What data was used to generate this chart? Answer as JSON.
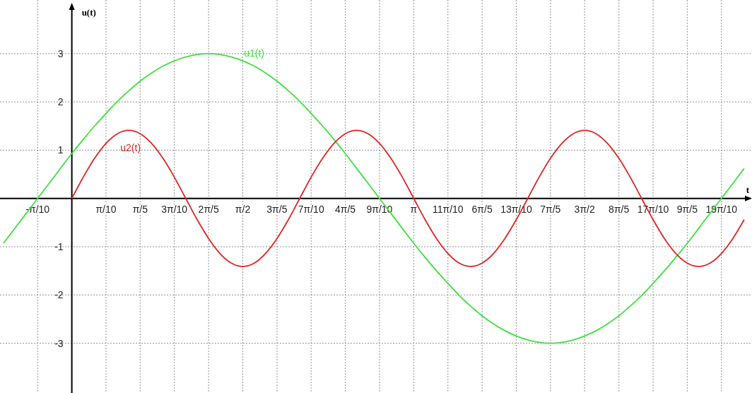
{
  "chart_data": {
    "type": "line",
    "xlabel": "t",
    "ylabel": "u(t)",
    "x": [
      -0.628,
      -0.524,
      -0.419,
      -0.314,
      -0.209,
      -0.105,
      0,
      0.105,
      0.209,
      0.314,
      0.419,
      0.524,
      0.628,
      0.733,
      0.838,
      0.942,
      1.047,
      1.152,
      1.257,
      1.361,
      1.466,
      1.571,
      1.676,
      1.78,
      1.885,
      1.99,
      2.094,
      2.199,
      2.304,
      2.409,
      2.513,
      2.618,
      2.723,
      2.827,
      2.932,
      3.037,
      3.142,
      3.246,
      3.351,
      3.456,
      3.56,
      3.665,
      3.77,
      3.875,
      3.979,
      4.084,
      4.189,
      4.294,
      4.398,
      4.503,
      4.608,
      4.712,
      4.817,
      4.922,
      5.027,
      5.131,
      5.236,
      5.341,
      5.445,
      5.55,
      5.655,
      5.76,
      5.864,
      5.969,
      6.074,
      6.178
    ],
    "series": [
      {
        "name": "u1(t)",
        "color": "#3ee03e",
        "values": [
          -0.93,
          -0.62,
          -0.31,
          0,
          0.31,
          0.62,
          0.93,
          1.22,
          1.5,
          1.76,
          2.01,
          2.23,
          2.43,
          2.6,
          2.74,
          2.85,
          2.93,
          2.98,
          3,
          2.98,
          2.93,
          2.85,
          2.74,
          2.6,
          2.43,
          2.23,
          2.01,
          1.76,
          1.5,
          1.22,
          0.93,
          0.62,
          0.31,
          0,
          -0.31,
          -0.62,
          -0.93,
          -1.22,
          -1.5,
          -1.76,
          -2.01,
          -2.23,
          -2.43,
          -2.6,
          -2.74,
          -2.85,
          -2.93,
          -2.98,
          -3,
          -2.98,
          -2.93,
          -2.85,
          -2.74,
          -2.6,
          -2.43,
          -2.23,
          -2.01,
          -1.76,
          -1.5,
          -1.22,
          -0.93,
          -0.62,
          -0.31,
          0,
          0.31,
          0.62
        ]
      },
      {
        "name": "u2(t)",
        "color": "#e02424",
        "values": [
          null,
          null,
          null,
          null,
          null,
          null,
          0,
          0.44,
          0.83,
          1.14,
          1.34,
          1.41,
          1.34,
          1.14,
          0.83,
          0.44,
          0,
          -0.44,
          -0.83,
          -1.14,
          -1.34,
          -1.41,
          -1.34,
          -1.14,
          -0.83,
          -0.44,
          0,
          0.44,
          0.83,
          1.14,
          1.34,
          1.41,
          1.34,
          1.14,
          0.83,
          0.44,
          0,
          -0.44,
          -0.83,
          -1.14,
          -1.34,
          -1.41,
          -1.34,
          -1.14,
          -0.83,
          -0.44,
          0,
          0.44,
          0.83,
          1.14,
          1.34,
          1.41,
          1.34,
          1.14,
          0.83,
          0.44,
          0,
          -0.44,
          -0.83,
          -1.14,
          -1.34,
          -1.41,
          -1.34,
          -1.14,
          -0.83,
          -0.44
        ]
      }
    ],
    "xlim": [
      -0.66,
      6.25
    ],
    "ylim": [
      -4.03,
      4.11
    ],
    "xticks": [
      {
        "value": -0.314,
        "label": "-π/10"
      },
      {
        "value": 0.314,
        "label": "π/10"
      },
      {
        "value": 0.628,
        "label": "π/5"
      },
      {
        "value": 0.942,
        "label": "3π/10"
      },
      {
        "value": 1.257,
        "label": "2π/5"
      },
      {
        "value": 1.571,
        "label": "π/2"
      },
      {
        "value": 1.885,
        "label": "3π/5"
      },
      {
        "value": 2.199,
        "label": "7π/10"
      },
      {
        "value": 2.513,
        "label": "4π/5"
      },
      {
        "value": 2.827,
        "label": "9π/10"
      },
      {
        "value": 3.142,
        "label": "π"
      },
      {
        "value": 3.456,
        "label": "11π/10"
      },
      {
        "value": 3.77,
        "label": "6π/5"
      },
      {
        "value": 4.084,
        "label": "13π/10"
      },
      {
        "value": 4.398,
        "label": "7π/5"
      },
      {
        "value": 4.712,
        "label": "3π/2"
      },
      {
        "value": 5.027,
        "label": "8π/5"
      },
      {
        "value": 5.341,
        "label": "17π/10"
      },
      {
        "value": 5.655,
        "label": "9π/5"
      },
      {
        "value": 5.969,
        "label": "19π/10"
      }
    ],
    "yticks": [
      -3,
      -2,
      -1,
      1,
      2,
      3
    ],
    "grid": true,
    "marker": "none",
    "line_style": "solid"
  }
}
